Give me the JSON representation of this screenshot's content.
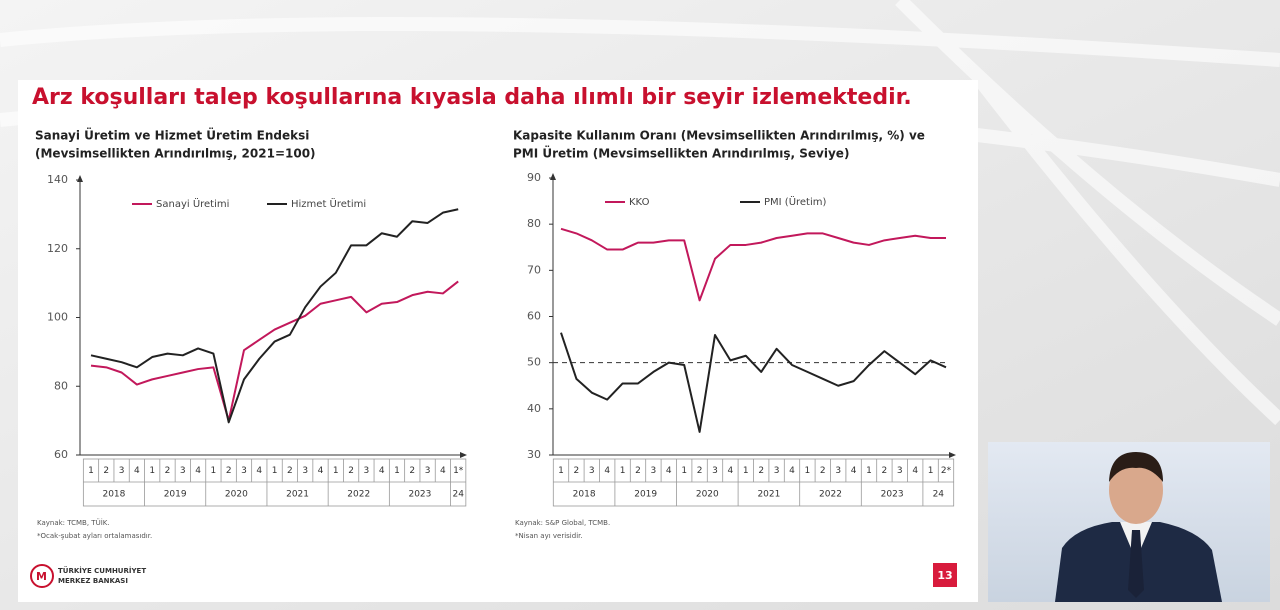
{
  "slide": {
    "title": "Arz koşulları talep koşullarına kıyasla daha ılımlı bir seyir izlemektedir.",
    "page_number": "13",
    "logo": [
      "TÜRKİYE CUMHURİYET",
      "MERKEZ BANKASI"
    ]
  },
  "chart_data": [
    {
      "type": "line",
      "title": [
        "Sanayi Üretim ve Hizmet Üretim Endeksi",
        "(Mevsimsellikten Arındırılmış, 2021=100)"
      ],
      "categories": [
        "1",
        "2",
        "3",
        "4",
        "1",
        "2",
        "3",
        "4",
        "1",
        "2",
        "3",
        "4",
        "1",
        "2",
        "3",
        "4",
        "1",
        "2",
        "3",
        "4",
        "1",
        "2",
        "3",
        "4",
        "1*"
      ],
      "year_labels": [
        "2018",
        "2019",
        "2020",
        "2021",
        "2022",
        "2023",
        "24"
      ],
      "ylim": [
        60,
        140
      ],
      "yticks": [
        60,
        80,
        100,
        120,
        140
      ],
      "grid": false,
      "legend": "upper left",
      "series": [
        {
          "name": "Sanayi Üretimi",
          "color": "#c2185b",
          "values": [
            86,
            85.5,
            84,
            80.5,
            82,
            83,
            84,
            85,
            85.5,
            70,
            90.5,
            93.5,
            96.5,
            98.5,
            100.5,
            104,
            105,
            106,
            101.5,
            104,
            104.5,
            106.5,
            107.5,
            107,
            110.5
          ]
        },
        {
          "name": "Hizmet Üretimi",
          "color": "#222222",
          "values": [
            89,
            88,
            87,
            85.5,
            88.5,
            89.5,
            89,
            91,
            89.5,
            69.5,
            82,
            88,
            93,
            95,
            103,
            109,
            113,
            121,
            121,
            124.5,
            123.5,
            128,
            127.5,
            130.5,
            131.5
          ]
        }
      ],
      "notes": [
        "Kaynak: TCMB, TÜİK.",
        "*Ocak-şubat ayları ortalamasıdır."
      ]
    },
    {
      "type": "line",
      "title": [
        "Kapasite Kullanım Oranı (Mevsimsellikten Arındırılmış, %) ve",
        "PMI Üretim (Mevsimsellikten Arındırılmış, Seviye)"
      ],
      "categories": [
        "1",
        "2",
        "3",
        "4",
        "1",
        "2",
        "3",
        "4",
        "1",
        "2",
        "3",
        "4",
        "1",
        "2",
        "3",
        "4",
        "1",
        "2",
        "3",
        "4",
        "1",
        "2",
        "3",
        "4",
        "1",
        "2*"
      ],
      "year_labels": [
        "2018",
        "2019",
        "2020",
        "2021",
        "2022",
        "2023",
        "24"
      ],
      "ylim": [
        30,
        90
      ],
      "yticks": [
        30,
        40,
        50,
        60,
        70,
        80,
        90
      ],
      "grid": false,
      "legend": "upper left",
      "reference_line": 50,
      "series": [
        {
          "name": "KKO",
          "color": "#c2185b",
          "values": [
            79,
            78,
            76.5,
            74.5,
            74.5,
            76,
            76,
            76.5,
            76.5,
            63.5,
            72.5,
            75.5,
            75.5,
            76,
            77,
            77.5,
            78,
            78,
            77,
            76,
            75.5,
            76.5,
            77,
            77.5,
            77,
            77
          ]
        },
        {
          "name": "PMI (Üretim)",
          "color": "#222222",
          "values": [
            56.5,
            46.5,
            43.5,
            42,
            45.5,
            45.5,
            48,
            50,
            49.5,
            35,
            56,
            50.5,
            51.5,
            48,
            53,
            49.5,
            48,
            46.5,
            45,
            46,
            49.5,
            52.5,
            50,
            47.5,
            50.5,
            49
          ]
        }
      ],
      "notes": [
        "Kaynak: S&P Global, TCMB.",
        "*Nisan ayı verisidir."
      ]
    }
  ]
}
